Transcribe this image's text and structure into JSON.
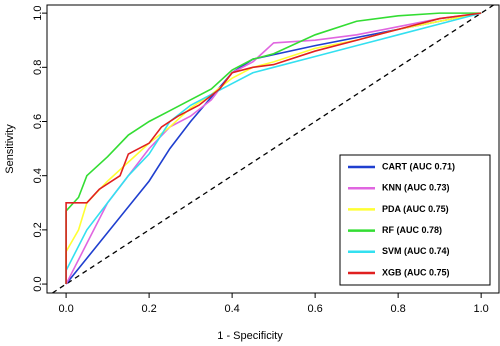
{
  "chart_data": {
    "type": "line",
    "xlabel": "1 - Specificity",
    "ylabel": "Sensitivity",
    "xlim": [
      -0.046,
      1.043
    ],
    "ylim": [
      -0.033,
      1.03
    ],
    "xticks": [
      {
        "value": 0,
        "label": "0.0"
      },
      0.2,
      0.4,
      0.6,
      0.8,
      {
        "value": 1,
        "label": "1.0"
      }
    ],
    "yticks": [
      {
        "value": 0,
        "label": "0.0"
      },
      0.2,
      0.4,
      0.6,
      0.8,
      {
        "value": 1,
        "label": "1.0"
      }
    ],
    "legend": "lower right",
    "series": [
      {
        "name": "CART (AUC 0.71)",
        "color": "#1f3fcf",
        "x": [
          0,
          0.2,
          0.25,
          0.3,
          0.4,
          0.45,
          0.6,
          0.8,
          1
        ],
        "values": [
          0,
          0.38,
          0.5,
          0.6,
          0.78,
          0.83,
          0.88,
          0.94,
          1
        ]
      },
      {
        "name": "KNN (AUC 0.73)",
        "color": "#e066e0",
        "x": [
          0,
          0.05,
          0.1,
          0.15,
          0.2,
          0.25,
          0.3,
          0.35,
          0.4,
          0.45,
          0.5,
          0.6,
          0.7,
          0.8,
          0.9,
          1
        ],
        "values": [
          0,
          0.15,
          0.3,
          0.4,
          0.5,
          0.58,
          0.62,
          0.68,
          0.78,
          0.82,
          0.89,
          0.9,
          0.92,
          0.95,
          0.98,
          1
        ]
      },
      {
        "name": "PDA (AUC 0.75)",
        "color": "#ffff33",
        "x": [
          0,
          0,
          0.03,
          0.05,
          0.1,
          0.15,
          0.2,
          0.25,
          0.3,
          0.35,
          0.4,
          0.45,
          0.5,
          0.6,
          0.7,
          0.8,
          0.9,
          1
        ],
        "values": [
          0,
          0.12,
          0.2,
          0.3,
          0.38,
          0.45,
          0.52,
          0.58,
          0.65,
          0.7,
          0.76,
          0.8,
          0.82,
          0.87,
          0.9,
          0.94,
          0.97,
          1
        ]
      },
      {
        "name": "RF (AUC 0.78)",
        "color": "#33dd33",
        "x": [
          0,
          0,
          0.03,
          0.05,
          0.1,
          0.15,
          0.2,
          0.25,
          0.3,
          0.35,
          0.4,
          0.45,
          0.5,
          0.6,
          0.7,
          0.8,
          0.9,
          1
        ],
        "values": [
          0,
          0.27,
          0.32,
          0.4,
          0.47,
          0.55,
          0.6,
          0.64,
          0.68,
          0.72,
          0.79,
          0.83,
          0.85,
          0.92,
          0.97,
          0.99,
          1,
          1
        ]
      },
      {
        "name": "SVM (AUC 0.74)",
        "color": "#33e0f0",
        "x": [
          0,
          0,
          0.05,
          0.1,
          0.15,
          0.2,
          0.25,
          0.3,
          0.35,
          0.4,
          0.45,
          0.5,
          0.6,
          0.7,
          0.8,
          0.9,
          1
        ],
        "values": [
          0,
          0.05,
          0.2,
          0.3,
          0.4,
          0.48,
          0.6,
          0.66,
          0.7,
          0.74,
          0.78,
          0.8,
          0.84,
          0.88,
          0.92,
          0.96,
          1
        ]
      },
      {
        "name": "XGB (AUC 0.75)",
        "color": "#e02020",
        "x": [
          0,
          0,
          0.05,
          0.08,
          0.13,
          0.15,
          0.2,
          0.23,
          0.27,
          0.32,
          0.37,
          0.4,
          0.45,
          0.5,
          0.6,
          0.7,
          0.8,
          0.9,
          1
        ],
        "values": [
          0,
          0.3,
          0.3,
          0.35,
          0.4,
          0.48,
          0.52,
          0.58,
          0.62,
          0.66,
          0.72,
          0.78,
          0.8,
          0.81,
          0.86,
          0.9,
          0.94,
          0.98,
          1
        ]
      }
    ]
  }
}
